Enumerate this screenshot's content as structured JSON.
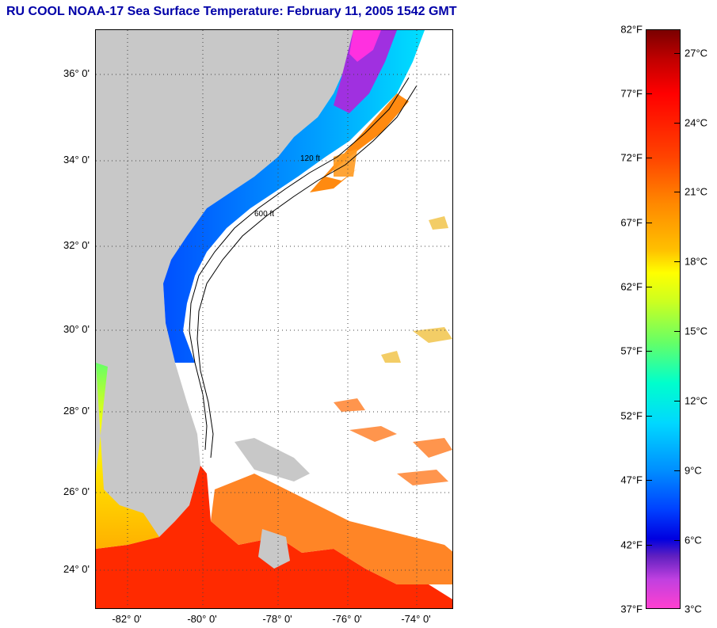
{
  "title": "RU COOL  NOAA-17  Sea Surface Temperature:  February 11, 2005 1542 GMT",
  "map": {
    "latitude_labels": [
      "36° 0'",
      "34° 0'",
      "32° 0'",
      "30° 0'",
      "28° 0'",
      "26° 0'",
      "24° 0'"
    ],
    "longitude_labels": [
      "-82° 0'",
      "-80° 0'",
      "-78° 0'",
      "-76° 0'",
      "-74° 0'"
    ],
    "isobath_labels": [
      "120 ft",
      "600 ft"
    ],
    "colors": {
      "land": "#c8c8c8",
      "ocean_no_data": "#ffffff",
      "grid": "#444444"
    }
  },
  "colorbar": {
    "fahrenheit_labels": [
      "82°F",
      "77°F",
      "72°F",
      "67°F",
      "62°F",
      "57°F",
      "52°F",
      "47°F",
      "42°F",
      "37°F"
    ],
    "celsius_labels": [
      "27°C",
      "24°C",
      "21°C",
      "18°C",
      "15°C",
      "12°C",
      "9°C",
      "6°C",
      "3°C"
    ]
  }
}
